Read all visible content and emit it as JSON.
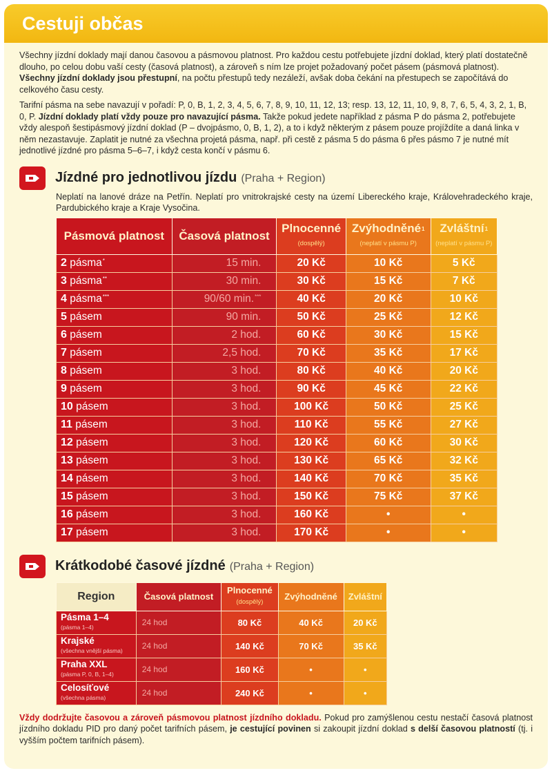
{
  "header": {
    "title": "Cestuji občas"
  },
  "intro": [
    [
      {
        "text": "Všechny jízdní doklady mají danou časovou a pásmovou platnost. Pro každou cestu potřebujete jízdní doklad, který platí dostatečně dlouho, po celou dobu vaší cesty (časová platnost), a zároveň s ním lze projet požadovaný počet pásem (pásmová platnost). ",
        "bold": false
      },
      {
        "text": "Všechny jízdní doklady jsou přestupní",
        "bold": true
      },
      {
        "text": ", na počtu přestupů tedy nezáleží, avšak doba čekání na přestupech se započítává do celkového času cesty.",
        "bold": false
      }
    ],
    [
      {
        "text": "Tarifní pásma na sebe navazují v pořadí: P, 0, B, 1, 2, 3, 4, 5, 6, 7, 8, 9, 10, 11, 12, 13; resp. 13, 12, 11, 10, 9, 8, 7, 6, 5, 4, 3, 2, 1, B, 0, P. ",
        "bold": false
      },
      {
        "text": "Jízdní doklady platí vždy pouze pro navazující pásma.",
        "bold": true
      },
      {
        "text": " Takže pokud jedete například z pásma P do pásma 2, potřebujete vždy alespoň šestipásmový jízdní doklad (P – dvojpásmo, 0, B, 1, 2), a to i když některým z pásem pouze projíždíte a daná linka v něm nezastavuje. Zaplatit je nutné za všechna projetá pásma, např. při cestě z pásma 5 do pásma 6 přes pásmo 7 je nutné mít jednotlivé jízdné pro pásma 5–6–7, i když cesta končí v pásmu 6.",
        "bold": false
      }
    ]
  ],
  "single": {
    "title": "Jízdné pro jednotlivou jízdu",
    "subtitle": "(Praha + Region)",
    "note": "Neplatí na lanové dráze na Petřín. Neplatí pro vnitrokrajské cesty na území Libereckého kraje, Královehradeckého kraje, Pardubického kraje a Kraje Vysočina.",
    "columns": [
      {
        "label": "Pásmová platnost",
        "sup": null,
        "sub": null
      },
      {
        "label": "Časová platnost",
        "sup": null,
        "sub": null
      },
      {
        "label": "Plnocenné",
        "sup": null,
        "sub": "(dospělý)"
      },
      {
        "label": "Zvýhodněné",
        "sup": "1",
        "sub": "(neplatí v pásmu P)"
      },
      {
        "label": "Zvláštní",
        "sup": "1",
        "sub": "(neplatí v pásmu P)"
      }
    ],
    "rows": [
      {
        "zone": "2",
        "word": "pásma",
        "mark": "*",
        "time": "15 min.",
        "time_mark": null,
        "prices": [
          "20 Kč",
          "10 Kč",
          "5 Kč"
        ]
      },
      {
        "zone": "3",
        "word": "pásma",
        "mark": "**",
        "time": "30 min.",
        "time_mark": null,
        "prices": [
          "30 Kč",
          "15 Kč",
          "7 Kč"
        ]
      },
      {
        "zone": "4",
        "word": "pásma",
        "mark": "***",
        "time": "90/60 min.",
        "time_mark": "***",
        "prices": [
          "40 Kč",
          "20 Kč",
          "10 Kč"
        ]
      },
      {
        "zone": "5",
        "word": "pásem",
        "mark": null,
        "time": "90 min.",
        "time_mark": null,
        "prices": [
          "50 Kč",
          "25 Kč",
          "12 Kč"
        ]
      },
      {
        "zone": "6",
        "word": "pásem",
        "mark": null,
        "time": "2 hod.",
        "time_mark": null,
        "prices": [
          "60 Kč",
          "30 Kč",
          "15 Kč"
        ]
      },
      {
        "zone": "7",
        "word": "pásem",
        "mark": null,
        "time": "2,5 hod.",
        "time_mark": null,
        "prices": [
          "70 Kč",
          "35 Kč",
          "17 Kč"
        ]
      },
      {
        "zone": "8",
        "word": "pásem",
        "mark": null,
        "time": "3 hod.",
        "time_mark": null,
        "prices": [
          "80 Kč",
          "40 Kč",
          "20 Kč"
        ]
      },
      {
        "zone": "9",
        "word": "pásem",
        "mark": null,
        "time": "3 hod.",
        "time_mark": null,
        "prices": [
          "90 Kč",
          "45 Kč",
          "22 Kč"
        ]
      },
      {
        "zone": "10",
        "word": "pásem",
        "mark": null,
        "time": "3 hod.",
        "time_mark": null,
        "prices": [
          "100 Kč",
          "50 Kč",
          "25 Kč"
        ]
      },
      {
        "zone": "11",
        "word": "pásem",
        "mark": null,
        "time": "3 hod.",
        "time_mark": null,
        "prices": [
          "110 Kč",
          "55 Kč",
          "27 Kč"
        ]
      },
      {
        "zone": "12",
        "word": "pásem",
        "mark": null,
        "time": "3 hod.",
        "time_mark": null,
        "prices": [
          "120 Kč",
          "60 Kč",
          "30 Kč"
        ]
      },
      {
        "zone": "13",
        "word": "pásem",
        "mark": null,
        "time": "3 hod.",
        "time_mark": null,
        "prices": [
          "130 Kč",
          "65 Kč",
          "32 Kč"
        ]
      },
      {
        "zone": "14",
        "word": "pásem",
        "mark": null,
        "time": "3 hod.",
        "time_mark": null,
        "prices": [
          "140 Kč",
          "70 Kč",
          "35 Kč"
        ]
      },
      {
        "zone": "15",
        "word": "pásem",
        "mark": null,
        "time": "3 hod.",
        "time_mark": null,
        "prices": [
          "150 Kč",
          "75 Kč",
          "37 Kč"
        ]
      },
      {
        "zone": "16",
        "word": "pásem",
        "mark": null,
        "time": "3 hod.",
        "time_mark": null,
        "prices": [
          "160 Kč",
          "•",
          "•"
        ]
      },
      {
        "zone": "17",
        "word": "pásem",
        "mark": null,
        "time": "3 hod.",
        "time_mark": null,
        "prices": [
          "170 Kč",
          "•",
          "•"
        ]
      }
    ]
  },
  "short": {
    "title": "Krátkodobé časové jízdné",
    "subtitle": "(Praha + Region)",
    "columns": [
      {
        "label": "Region",
        "sub": null
      },
      {
        "label": "Časová platnost",
        "sub": null
      },
      {
        "label": "Plnocenné",
        "sub": "(dospělý)"
      },
      {
        "label": "Zvýhodněné",
        "sub": null
      },
      {
        "label": "Zvláštní",
        "sub": null
      }
    ],
    "rows": [
      {
        "region": "Pásma 1–4",
        "desc": "(pásma 1–4)",
        "time": "24 hod",
        "prices": [
          "80 Kč",
          "40 Kč",
          "20 Kč"
        ]
      },
      {
        "region": "Krajské",
        "desc": "(všechna vnější pásma)",
        "time": "24 hod",
        "prices": [
          "140 Kč",
          "70 Kč",
          "35 Kč"
        ]
      },
      {
        "region": "Praha XXL",
        "desc": "(pásma P, 0, B, 1–4)",
        "time": "24 hod",
        "prices": [
          "160 Kč",
          "•",
          "•"
        ]
      },
      {
        "region": "Celosíťové",
        "desc": "(všechna pásma)",
        "time": "24 hod",
        "prices": [
          "240 Kč",
          "•",
          "•"
        ]
      }
    ]
  },
  "footer": [
    {
      "text": "Vždy dodržujte časovou a zároveň pásmovou platnost jízdního dokladu.",
      "bold": true,
      "red": true
    },
    {
      "text": " Pokud pro zamýšlenou cestu nestačí časová platnost jízdního dokladu PID pro daný počet tarifních pásem, ",
      "bold": false,
      "red": false
    },
    {
      "text": "je cestující povinen",
      "bold": true,
      "red": false
    },
    {
      "text": " si zakoupit jízdní doklad ",
      "bold": false,
      "red": false
    },
    {
      "text": "s delší časovou platností",
      "bold": true,
      "red": false
    },
    {
      "text": " (tj. i vyšším počtem tarifních pásem).",
      "bold": false,
      "red": false
    }
  ]
}
